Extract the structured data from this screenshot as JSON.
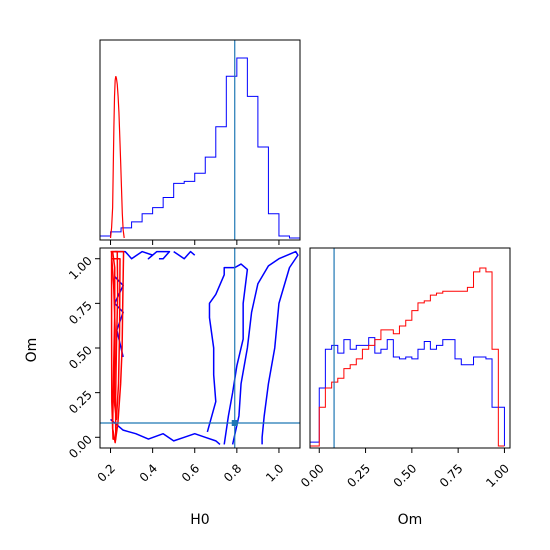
{
  "chart_data": {
    "type": "corner",
    "parameters": [
      "H0",
      "Om"
    ],
    "axis_labels": {
      "x_left": "H0",
      "x_right": "Om",
      "y_left": "Om"
    },
    "truth": {
      "H0": 0.79,
      "Om": 0.08
    },
    "truth_color": "#1f77b4",
    "series_colors": {
      "red": "#ff0000",
      "blue": "#0000ff"
    },
    "h0_hist": {
      "xlim": [
        0.15,
        1.1
      ],
      "ticks": [
        0.2,
        0.4,
        0.6,
        0.8,
        1.0
      ],
      "tick_labels": [
        "0.2",
        "0.4",
        "0.6",
        "0.8",
        "1.0"
      ],
      "red": {
        "x": [
          0.2,
          0.205,
          0.21,
          0.213,
          0.216,
          0.219,
          0.222,
          0.225,
          0.228,
          0.232,
          0.236,
          0.24,
          0.244,
          0.248,
          0.252,
          0.256,
          0.26,
          0.265
        ],
        "y": [
          0,
          0.05,
          0.15,
          0.35,
          0.55,
          0.7,
          0.78,
          0.8,
          0.79,
          0.76,
          0.7,
          0.62,
          0.5,
          0.38,
          0.25,
          0.12,
          0.04,
          0
        ]
      },
      "blue": {
        "edges": [
          0.15,
          0.2,
          0.25,
          0.3,
          0.35,
          0.4,
          0.45,
          0.5,
          0.55,
          0.6,
          0.65,
          0.7,
          0.75,
          0.8,
          0.85,
          0.9,
          0.95,
          1.0,
          1.05,
          1.1
        ],
        "values": [
          0.01,
          0.03,
          0.05,
          0.08,
          0.12,
          0.15,
          0.2,
          0.27,
          0.28,
          0.32,
          0.4,
          0.55,
          0.8,
          0.89,
          0.7,
          0.45,
          0.12,
          0.01,
          0
        ]
      }
    },
    "om_hist": {
      "xlim": [
        -0.05,
        1.03
      ],
      "ticks": [
        0.0,
        0.25,
        0.5,
        0.75,
        1.0
      ],
      "tick_labels": [
        "0.00",
        "0.25",
        "0.50",
        "0.75",
        "1.00"
      ],
      "edges": [
        -0.05,
        0.0,
        0.033,
        0.067,
        0.1,
        0.133,
        0.167,
        0.2,
        0.233,
        0.267,
        0.3,
        0.333,
        0.367,
        0.4,
        0.433,
        0.467,
        0.5,
        0.533,
        0.567,
        0.6,
        0.633,
        0.667,
        0.7,
        0.733,
        0.767,
        0.8,
        0.833,
        0.867,
        0.9,
        0.933,
        0.967,
        1.0
      ],
      "red": [
        0,
        0.2,
        0.3,
        0.33,
        0.35,
        0.4,
        0.42,
        0.45,
        0.5,
        0.52,
        0.55,
        0.6,
        0.6,
        0.58,
        0.62,
        0.65,
        0.7,
        0.74,
        0.75,
        0.78,
        0.79,
        0.8,
        0.8,
        0.8,
        0.8,
        0.82,
        0.9,
        0.92,
        0.9,
        0.5,
        0
      ],
      "blue": [
        0.02,
        0.3,
        0.5,
        0.52,
        0.48,
        0.55,
        0.5,
        0.52,
        0.52,
        0.56,
        0.48,
        0.5,
        0.55,
        0.46,
        0.45,
        0.46,
        0.45,
        0.5,
        0.54,
        0.5,
        0.52,
        0.55,
        0.55,
        0.45,
        0.42,
        0.42,
        0.46,
        0.46,
        0.45,
        0.2,
        0.2
      ]
    },
    "joint": {
      "xlim": [
        0.15,
        1.1
      ],
      "ylim": [
        -0.06,
        1.06
      ],
      "x_ticks": [
        0.2,
        0.4,
        0.6,
        0.8,
        1.0
      ],
      "x_tick_labels": [
        "0.2",
        "0.4",
        "0.6",
        "0.8",
        "1.0"
      ],
      "y_ticks": [
        0.0,
        0.25,
        0.5,
        0.75,
        1.0
      ],
      "y_tick_labels": [
        "0.00",
        "0.25",
        "0.50",
        "0.75",
        "1.00"
      ],
      "red_contours": [
        [
          [
            0.2,
            1.04
          ],
          [
            0.232,
            1.04
          ],
          [
            0.234,
            0.8
          ],
          [
            0.228,
            0.5
          ],
          [
            0.224,
            0.2
          ],
          [
            0.225,
            -0.01
          ],
          [
            0.212,
            -0.01
          ],
          [
            0.206,
            0.2
          ],
          [
            0.205,
            0.6
          ],
          [
            0.205,
            1.04
          ]
        ],
        [
          [
            0.205,
            1.04
          ],
          [
            0.262,
            1.04
          ],
          [
            0.258,
            0.75
          ],
          [
            0.255,
            0.5
          ],
          [
            0.248,
            0.3
          ],
          [
            0.235,
            0.08
          ],
          [
            0.222,
            -0.03
          ],
          [
            0.21,
            0.05
          ],
          [
            0.215,
            0.4
          ],
          [
            0.22,
            0.7
          ],
          [
            0.22,
            0.95
          ],
          [
            0.21,
            1.04
          ]
        ],
        [
          [
            0.206,
            1.0
          ],
          [
            0.245,
            1.0
          ],
          [
            0.243,
            0.6
          ],
          [
            0.238,
            0.3
          ],
          [
            0.228,
            0.1
          ],
          [
            0.218,
            0.2
          ],
          [
            0.222,
            0.6
          ],
          [
            0.215,
            0.85
          ],
          [
            0.206,
            1.0
          ]
        ]
      ],
      "blue_contours": [
        [
          [
            0.22,
            1.04
          ],
          [
            0.27,
            1.04
          ],
          [
            0.3,
            1.0
          ],
          [
            0.35,
            1.04
          ],
          [
            0.4,
            1.02
          ],
          [
            0.38,
            1.0
          ],
          [
            0.42,
            1.04
          ],
          [
            0.48,
            1.04
          ],
          [
            0.45,
            1.0
          ],
          [
            0.43,
            1.0
          ]
        ],
        [
          [
            0.5,
            1.04
          ],
          [
            0.55,
            1.0
          ],
          [
            0.58,
            1.04
          ],
          [
            0.6,
            1.02
          ]
        ],
        [
          [
            0.22,
            0.9
          ],
          [
            0.26,
            0.85
          ],
          [
            0.22,
            0.75
          ],
          [
            0.26,
            0.7
          ],
          [
            0.23,
            0.6
          ],
          [
            0.26,
            0.45
          ]
        ],
        [
          [
            0.2,
            0.1
          ],
          [
            0.26,
            0.04
          ],
          [
            0.32,
            0.02
          ],
          [
            0.38,
            -0.01
          ],
          [
            0.45,
            0.02
          ],
          [
            0.5,
            -0.02
          ],
          [
            0.55,
            0.0
          ],
          [
            0.6,
            0.02
          ],
          [
            0.65,
            0.0
          ],
          [
            0.7,
            -0.02
          ],
          [
            0.72,
            -0.04
          ]
        ],
        [
          [
            0.66,
            0.03
          ],
          [
            0.7,
            0.2
          ],
          [
            0.69,
            0.35
          ],
          [
            0.69,
            0.5
          ],
          [
            0.67,
            0.67
          ],
          [
            0.67,
            0.75
          ],
          [
            0.7,
            0.8
          ],
          [
            0.74,
            0.91
          ],
          [
            0.74,
            0.95
          ],
          [
            0.79,
            0.95
          ],
          [
            0.82,
            0.97
          ],
          [
            0.85,
            0.94
          ],
          [
            0.83,
            0.75
          ],
          [
            0.83,
            0.55
          ],
          [
            0.8,
            0.4
          ],
          [
            0.78,
            0.25
          ],
          [
            0.76,
            0.12
          ],
          [
            0.74,
            -0.04
          ]
        ],
        [
          [
            0.78,
            -0.04
          ],
          [
            0.81,
            0.12
          ],
          [
            0.82,
            0.3
          ],
          [
            0.85,
            0.5
          ],
          [
            0.87,
            0.7
          ],
          [
            0.9,
            0.86
          ],
          [
            0.95,
            0.96
          ],
          [
            1.0,
            1.0
          ],
          [
            1.08,
            1.04
          ],
          [
            1.09,
            1.02
          ],
          [
            1.05,
            0.95
          ],
          [
            1.0,
            0.75
          ],
          [
            0.98,
            0.5
          ],
          [
            0.95,
            0.3
          ],
          [
            0.93,
            0.12
          ],
          [
            0.92,
            0.0
          ],
          [
            0.92,
            -0.04
          ]
        ]
      ]
    }
  }
}
